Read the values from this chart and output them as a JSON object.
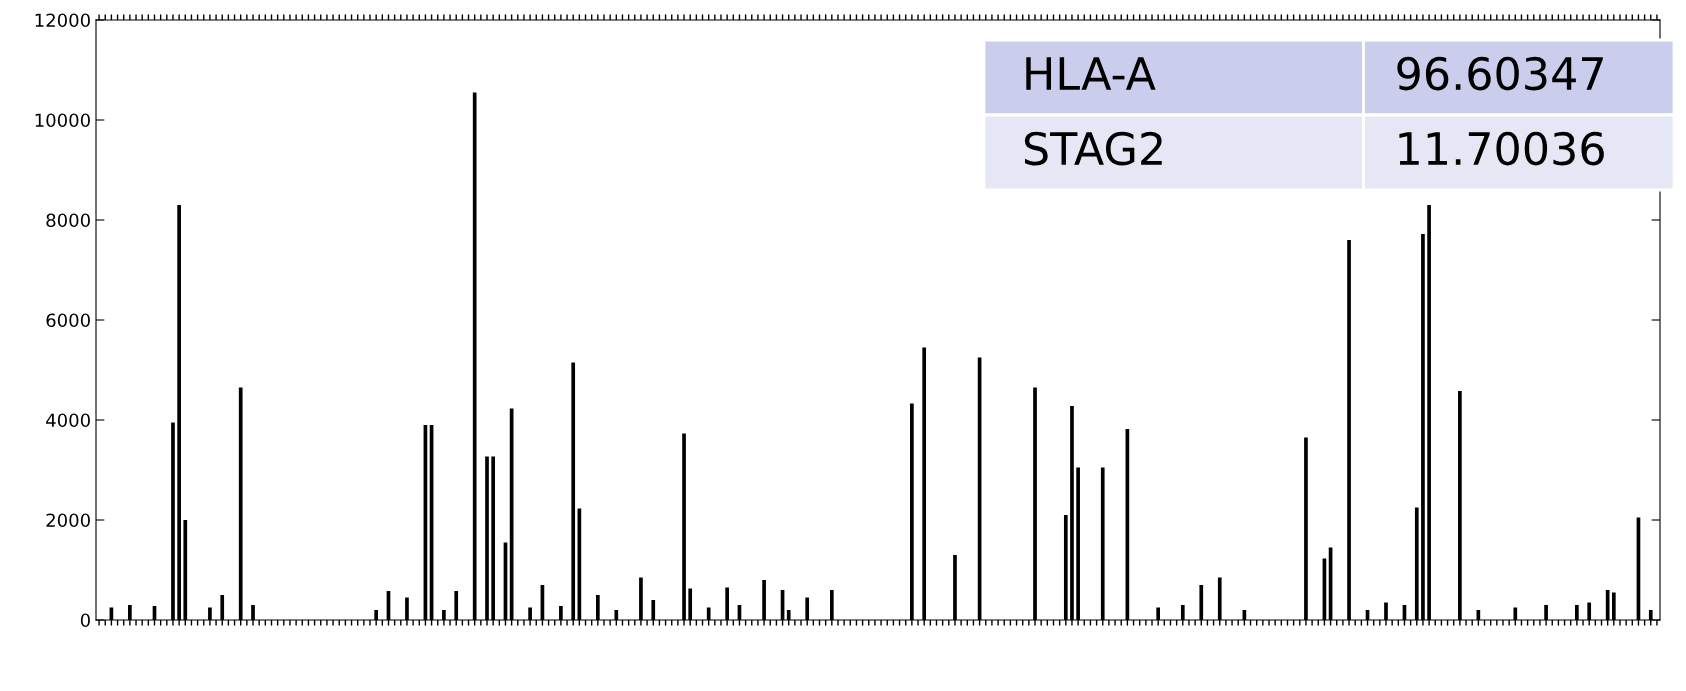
{
  "chart_data": {
    "type": "bar",
    "categories": [
      null,
      null,
      null,
      null,
      null,
      null,
      null,
      null,
      null,
      null,
      null,
      null,
      null,
      null,
      null,
      null,
      null,
      null,
      null,
      null,
      null,
      null,
      null,
      null,
      null,
      null,
      null,
      null,
      null,
      null,
      null,
      null,
      null,
      null,
      null,
      null,
      null,
      null,
      null,
      null,
      null,
      null,
      null,
      null,
      null,
      null,
      null,
      null,
      null,
      null,
      null,
      null,
      null,
      null,
      null,
      null,
      null,
      null,
      null,
      null,
      null,
      null,
      null,
      null,
      null,
      null,
      null,
      null,
      null,
      null,
      null,
      null,
      null,
      null,
      null,
      null,
      null,
      null,
      null,
      null,
      null,
      null,
      null,
      null,
      null,
      null,
      null,
      null,
      null,
      null,
      null,
      null,
      null,
      null,
      null,
      null,
      null,
      null,
      null,
      null,
      null,
      null,
      null,
      null,
      null,
      null,
      null,
      null,
      null,
      null,
      null,
      null,
      null,
      null,
      null,
      null,
      null,
      null,
      null,
      null,
      null,
      null,
      null,
      null,
      null,
      null,
      null,
      null,
      null,
      null,
      null,
      null,
      null,
      null,
      null,
      null,
      null,
      null,
      null,
      null,
      null,
      null,
      null,
      null,
      null,
      null,
      null,
      null,
      null,
      null,
      null,
      null,
      null,
      null,
      null,
      null,
      null,
      null,
      null,
      null,
      null,
      null,
      null,
      null,
      null,
      null,
      null,
      null,
      null,
      null,
      null,
      null,
      null,
      null,
      null,
      null,
      null,
      null,
      null,
      null,
      null,
      null,
      null,
      null,
      null,
      null,
      null,
      null,
      null,
      null,
      null,
      null,
      null,
      null,
      null,
      null,
      null,
      null,
      null,
      null,
      null,
      null,
      null,
      null,
      null,
      null,
      null,
      null,
      null,
      null,
      null,
      null,
      null,
      null,
      null,
      null,
      null,
      null,
      null,
      null,
      null,
      null,
      null,
      null,
      null,
      null,
      null,
      null,
      null,
      null,
      null,
      null,
      null,
      null,
      null,
      null,
      null,
      null,
      null,
      null,
      null,
      null,
      null,
      null,
      null,
      null,
      null,
      null,
      null,
      null,
      null,
      null,
      null,
      null
    ],
    "values": [
      null,
      null,
      250,
      null,
      null,
      300,
      null,
      null,
      null,
      280,
      null,
      null,
      3950,
      8300,
      2000,
      null,
      null,
      null,
      250,
      null,
      500,
      null,
      null,
      4650,
      null,
      300,
      null,
      null,
      null,
      null,
      null,
      null,
      null,
      null,
      null,
      null,
      null,
      null,
      null,
      null,
      null,
      null,
      null,
      null,
      null,
      200,
      null,
      580,
      null,
      null,
      450,
      null,
      null,
      3900,
      3900,
      null,
      200,
      null,
      580,
      null,
      null,
      10550,
      null,
      3270,
      3270,
      null,
      1550,
      4230,
      null,
      null,
      250,
      null,
      700,
      null,
      null,
      280,
      null,
      5150,
      2230,
      null,
      null,
      500,
      null,
      null,
      200,
      null,
      null,
      null,
      850,
      null,
      400,
      null,
      null,
      null,
      null,
      3730,
      630,
      null,
      null,
      250,
      null,
      null,
      650,
      null,
      300,
      null,
      null,
      null,
      800,
      null,
      null,
      600,
      200,
      null,
      null,
      450,
      null,
      null,
      null,
      600,
      null,
      null,
      null,
      null,
      null,
      null,
      null,
      null,
      null,
      null,
      null,
      null,
      4330,
      null,
      5450,
      null,
      null,
      null,
      null,
      1300,
      null,
      null,
      null,
      5250,
      null,
      null,
      null,
      null,
      null,
      null,
      null,
      null,
      4650,
      null,
      null,
      null,
      null,
      2100,
      4280,
      3050,
      null,
      null,
      null,
      3050,
      null,
      null,
      null,
      3820,
      null,
      null,
      null,
      null,
      250,
      null,
      null,
      null,
      300,
      null,
      null,
      700,
      null,
      null,
      850,
      null,
      null,
      null,
      200,
      null,
      null,
      null,
      null,
      null,
      null,
      null,
      null,
      null,
      3650,
      null,
      null,
      1230,
      1450,
      null,
      null,
      7600,
      null,
      null,
      200,
      null,
      null,
      350,
      null,
      null,
      300,
      null,
      2250,
      7720,
      8300,
      null,
      null,
      null,
      null,
      4580,
      null,
      null,
      200,
      null,
      null,
      null,
      null,
      null,
      250,
      null,
      null,
      null,
      null,
      300,
      null,
      null,
      null,
      null,
      300,
      null,
      350,
      null,
      null,
      600,
      550,
      null,
      null,
      null,
      2050,
      null,
      200,
      null
    ],
    "color": "#000000",
    "ylim": [
      0,
      12000
    ],
    "yticks": [
      0,
      2000,
      4000,
      6000,
      8000,
      10000,
      12000
    ],
    "grid": false,
    "annotations": [
      "HLA-A",
      "96.60347",
      "STAG2",
      "11.70036"
    ]
  }
}
